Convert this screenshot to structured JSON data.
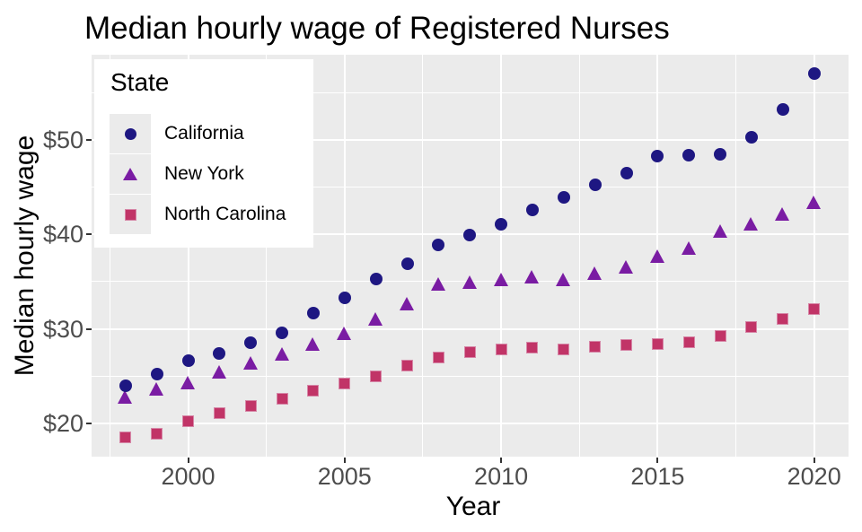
{
  "chart_data": {
    "type": "scatter",
    "title": "Median hourly wage of Registered Nurses",
    "xlabel": "Year",
    "ylabel": "Median hourly wage",
    "x": [
      1998,
      1999,
      2000,
      2001,
      2002,
      2003,
      2004,
      2005,
      2006,
      2007,
      2008,
      2009,
      2010,
      2011,
      2012,
      2013,
      2014,
      2015,
      2016,
      2017,
      2018,
      2019,
      2020
    ],
    "series": [
      {
        "name": "California",
        "shape": "circle",
        "color": "#1E1782",
        "values": [
          24.0,
          25.2,
          26.6,
          27.4,
          28.5,
          29.6,
          31.7,
          33.3,
          35.3,
          36.9,
          38.9,
          39.9,
          41.1,
          42.6,
          43.9,
          45.3,
          46.5,
          48.3,
          48.4,
          48.5,
          50.3,
          53.2,
          57.0
        ]
      },
      {
        "name": "New York",
        "shape": "triangle",
        "color": "#7A1CA3",
        "values": [
          22.8,
          23.6,
          24.3,
          25.4,
          26.4,
          27.3,
          28.4,
          29.5,
          31.0,
          32.7,
          34.8,
          34.9,
          35.2,
          35.5,
          35.2,
          35.9,
          36.6,
          37.7,
          38.6,
          40.4,
          41.1,
          42.2,
          43.4
        ]
      },
      {
        "name": "North Carolina",
        "shape": "square",
        "color": "#C13467",
        "square_border": "#D687A7",
        "values": [
          18.5,
          18.9,
          20.2,
          21.1,
          21.8,
          22.6,
          23.4,
          24.2,
          25.0,
          26.1,
          27.0,
          27.5,
          27.8,
          28.0,
          27.8,
          28.1,
          28.3,
          28.4,
          28.6,
          29.2,
          30.2,
          31.0,
          32.1
        ]
      }
    ],
    "legend": {
      "title": "State",
      "position": "top-left-inside",
      "entries": [
        "California",
        "New York",
        "North Carolina"
      ]
    },
    "x_axis": {
      "tick_values": [
        2000,
        2005,
        2010,
        2015,
        2020
      ],
      "tick_labels": [
        "2000",
        "2005",
        "2010",
        "2015",
        "2020"
      ],
      "minor_tick_values": [
        1997.5,
        2002.5,
        2007.5,
        2012.5,
        2017.5
      ],
      "range": [
        1996.9,
        2021.1
      ]
    },
    "y_axis": {
      "tick_values": [
        20,
        30,
        40,
        50
      ],
      "tick_labels": [
        "$20",
        "$30",
        "$40",
        "$50"
      ],
      "minor_tick_values": [
        25,
        35,
        45,
        55
      ],
      "range": [
        16.4,
        59.0
      ]
    },
    "grid": true,
    "style": {
      "panel_bg": "#EBEBEB",
      "grid_color": "#FFFFFF",
      "tick_text_color": "#4D4D4D",
      "tick_mark_color": "#333333",
      "text_color": "#000000",
      "legend_bg": "#FFFFFF",
      "legend_key_bg": "#EBEBEB",
      "plot_bg": "#FFFFFF"
    }
  }
}
